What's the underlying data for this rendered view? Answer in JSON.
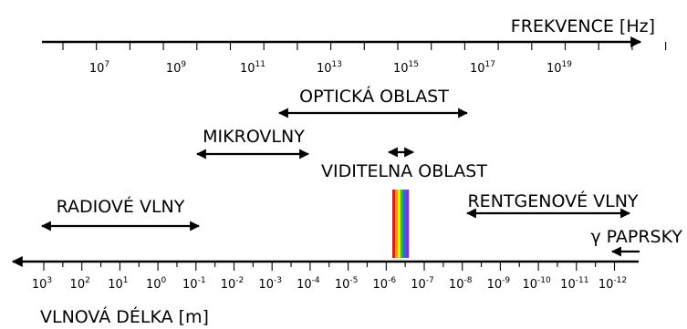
{
  "frequency_axis": {
    "label": "FREKVENCE [Hz]",
    "ticks": [
      {
        "base": "10",
        "exp": "7"
      },
      {
        "base": "10",
        "exp": "9"
      },
      {
        "base": "10",
        "exp": "11"
      },
      {
        "base": "10",
        "exp": "13"
      },
      {
        "base": "10",
        "exp": "15"
      },
      {
        "base": "10",
        "exp": "17"
      },
      {
        "base": "10",
        "exp": "19"
      }
    ]
  },
  "wavelength_axis": {
    "label": "VLNOVÁ DÉLKA [m]",
    "ticks": [
      {
        "base": "10",
        "exp": "3"
      },
      {
        "base": "10",
        "exp": "2"
      },
      {
        "base": "10",
        "exp": "1"
      },
      {
        "base": "10",
        "exp": "0"
      },
      {
        "base": "10",
        "exp": "-1"
      },
      {
        "base": "10",
        "exp": "-2"
      },
      {
        "base": "10",
        "exp": "-3"
      },
      {
        "base": "10",
        "exp": "-4"
      },
      {
        "base": "10",
        "exp": "-5"
      },
      {
        "base": "10",
        "exp": "-6"
      },
      {
        "base": "10",
        "exp": "-7"
      },
      {
        "base": "10",
        "exp": "-8"
      },
      {
        "base": "10",
        "exp": "-9"
      },
      {
        "base": "10",
        "exp": "-10"
      },
      {
        "base": "10",
        "exp": "-11"
      },
      {
        "base": "10",
        "exp": "-12"
      }
    ]
  },
  "regions": {
    "optical": "OPTICKÁ OBLAST",
    "microwave": "MIKROVLNY",
    "visible": "VIDITELNA OBLAST",
    "radio": "RADIOVÉ VLNY",
    "xray": "RENTGENOVÉ VLNY",
    "gamma": "γ PAPRSKY"
  },
  "spectrum_colors": [
    "#e8161b",
    "#f7931e",
    "#ffe600",
    "#2eb82e",
    "#1e74d6",
    "#8a2be2"
  ]
}
